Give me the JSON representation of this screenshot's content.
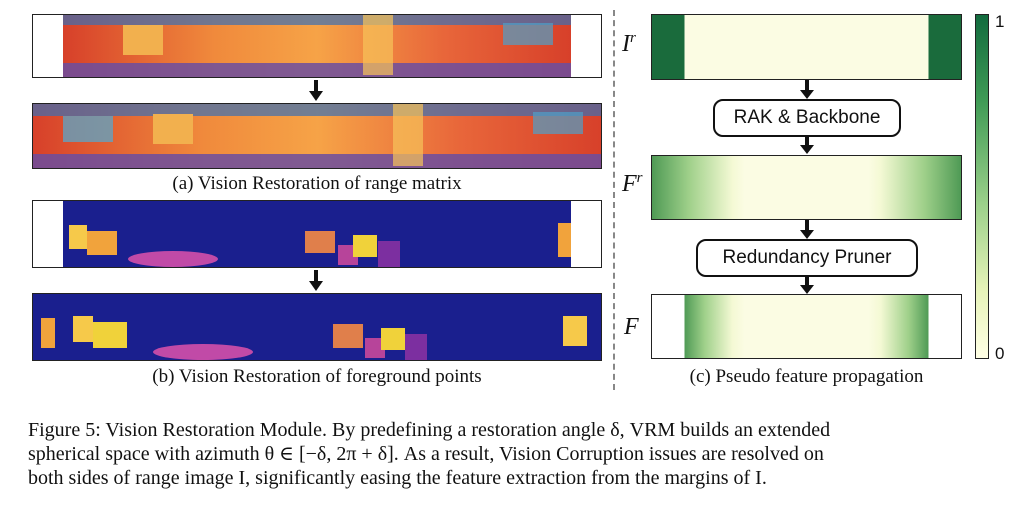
{
  "captions": {
    "a": "(a) Vision Restoration of range matrix",
    "b": "(b) Vision Restoration of foreground points",
    "c": "(c) Pseudo feature propagation"
  },
  "labels": {
    "rak": "RAK & Backbone",
    "pruner": "Redundancy Pruner"
  },
  "symbols": {
    "ir_base": "I",
    "ir_sup": "r",
    "fr_base": "F",
    "fr_sup": "r",
    "f": "F"
  },
  "colorbar": {
    "max": "1",
    "min": "0",
    "colors": [
      "#126b3e",
      "#ffffe5"
    ]
  },
  "figure_caption": {
    "line1": "Figure 5: Vision Restoration Module. By predefining a restoration angle δ, VRM builds an extended",
    "line2": "spherical space with azimuth θ ∈ [−δ, 2π + δ]. As a result, Vision Corruption issues are resolved on",
    "line3": "both sides of range image I, significantly easing the feature extraction from the margins of I."
  }
}
